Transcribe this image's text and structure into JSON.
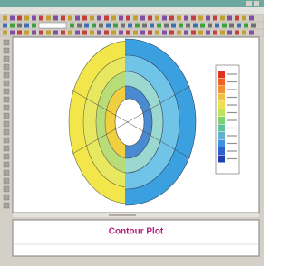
{
  "output_panel": {
    "text": "Contour Plot"
  }
}
